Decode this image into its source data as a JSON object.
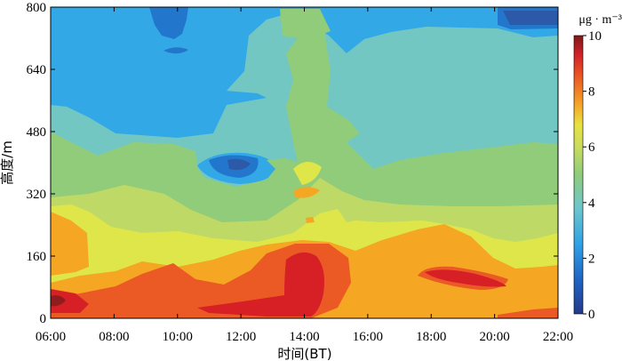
{
  "chart_data": {
    "type": "heatmap",
    "title": "",
    "xlabel": "时间(BT)",
    "ylabel": "高度/m",
    "x_ticks": [
      "06:00",
      "08:00",
      "10:00",
      "12:00",
      "14:00",
      "16:00",
      "18:00",
      "20:00",
      "22:00"
    ],
    "y_ticks": [
      "0",
      "160",
      "320",
      "480",
      "640",
      "800"
    ],
    "xlim_hours": [
      6,
      22
    ],
    "ylim": [
      0,
      800
    ],
    "colorbar": {
      "label": "μg · m⁻³",
      "min": 0,
      "max": 10,
      "ticks": [
        "0",
        "2",
        "4",
        "6",
        "8",
        "10"
      ]
    },
    "contour_levels": [
      {
        "range": "0-1",
        "color": "#2c5aa8"
      },
      {
        "range": "1-2",
        "color": "#2277cc"
      },
      {
        "range": "2-3",
        "color": "#33a8e6"
      },
      {
        "range": "3-4",
        "color": "#73c7c3"
      },
      {
        "range": "4-5",
        "color": "#91cc7a"
      },
      {
        "range": "5-6",
        "color": "#bfd967"
      },
      {
        "range": "6-7",
        "color": "#dfe64a"
      },
      {
        "range": "7-8",
        "color": "#f5a623"
      },
      {
        "range": "8-9",
        "color": "#eb5a24"
      },
      {
        "range": "9-10",
        "color": "#d71f26"
      },
      {
        "range": ">10",
        "color": "#8f1d1d"
      }
    ]
  }
}
